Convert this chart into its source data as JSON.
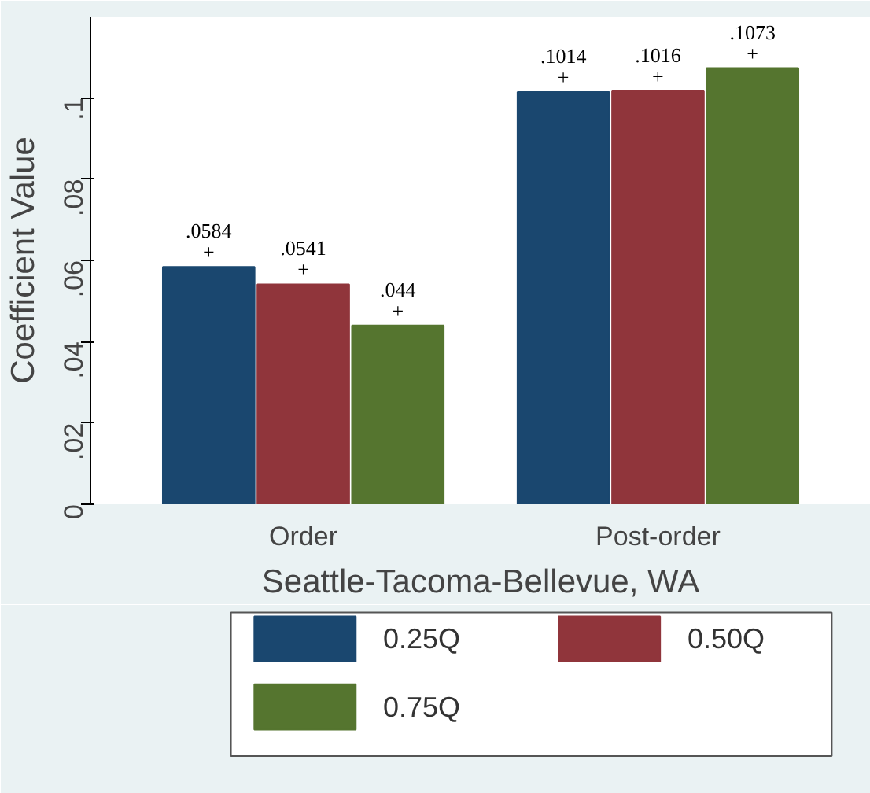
{
  "chart_data": {
    "type": "bar",
    "xlabel": "Seattle-Tacoma-Bellevue, WA",
    "ylabel": "Coefficient Value",
    "categories": [
      "Order",
      "Post-order"
    ],
    "series": [
      {
        "name": "0.25Q",
        "color": "#1a476f",
        "values": [
          0.0584,
          0.1014
        ],
        "value_labels": [
          ".0584\n+",
          ".1014\n+"
        ]
      },
      {
        "name": "0.50Q",
        "color": "#90353b",
        "values": [
          0.0541,
          0.1016
        ],
        "value_labels": [
          ".0541\n+",
          ".1016\n+"
        ]
      },
      {
        "name": "0.75Q",
        "color": "#55752f",
        "values": [
          0.044,
          0.1073
        ],
        "value_labels": [
          ".044\n+",
          ".1073\n+"
        ]
      }
    ],
    "ylim": [
      0,
      0.12
    ],
    "yticks": [
      0,
      {
        "value": 0.02,
        "label": ".02"
      },
      {
        "value": 0.04,
        "label": ".04"
      },
      {
        "value": 0.06,
        "label": ".06"
      },
      {
        "value": 0.08,
        "label": ".08"
      },
      {
        "value": 0.1,
        "label": ".1"
      }
    ],
    "grid": false,
    "legend": "bottom"
  }
}
